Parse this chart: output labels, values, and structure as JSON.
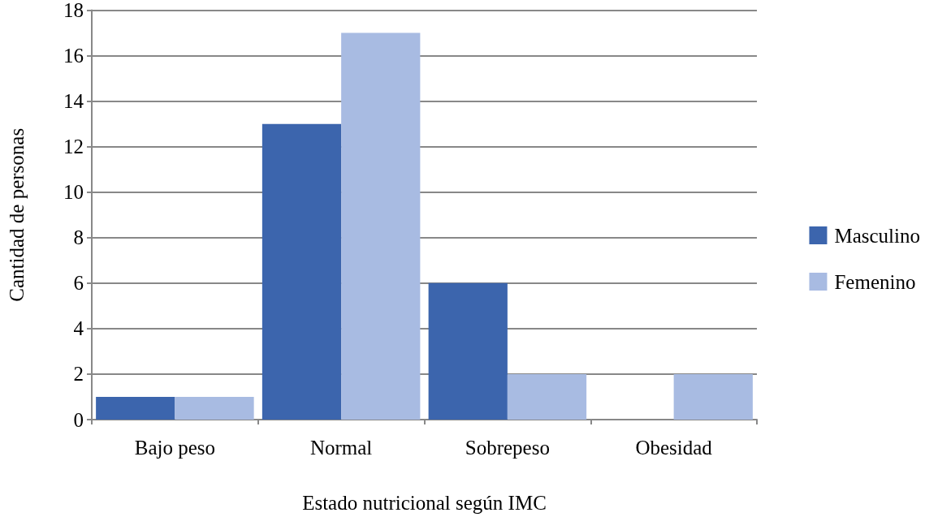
{
  "chart_data": {
    "type": "bar",
    "xlabel": "Estado nutricional según IMC",
    "ylabel": "Cantidad de personas",
    "categories": [
      "Bajo peso",
      "Normal",
      "Sobrepeso",
      "Obesidad"
    ],
    "series": [
      {
        "name": "Masculino",
        "color": "#3c65ad",
        "values": [
          1,
          13,
          6,
          0
        ]
      },
      {
        "name": "Femenino",
        "color": "#a8bbe2",
        "values": [
          1,
          17,
          2,
          2
        ]
      }
    ],
    "ylim": [
      0,
      18
    ],
    "yticks": [
      0,
      2,
      4,
      6,
      8,
      10,
      12,
      14,
      16,
      18
    ],
    "grid": "y",
    "legend": "right"
  }
}
